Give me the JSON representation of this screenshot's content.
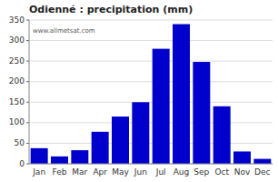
{
  "chart_data": {
    "type": "bar",
    "title": "Odienné : precipitation (mm)",
    "categories": [
      "Jan",
      "Feb",
      "Mar",
      "Apr",
      "May",
      "Jun",
      "Jul",
      "Aug",
      "Sep",
      "Oct",
      "Nov",
      "Dec"
    ],
    "values": [
      38,
      18,
      33,
      78,
      115,
      150,
      280,
      340,
      248,
      140,
      30,
      12
    ],
    "color": "#0000CC",
    "ylim": [
      0,
      350
    ],
    "yticks": [
      0,
      50,
      100,
      150,
      200,
      250,
      300,
      350
    ],
    "grid": true,
    "annotations": [
      "www.allmetsat.com"
    ]
  }
}
